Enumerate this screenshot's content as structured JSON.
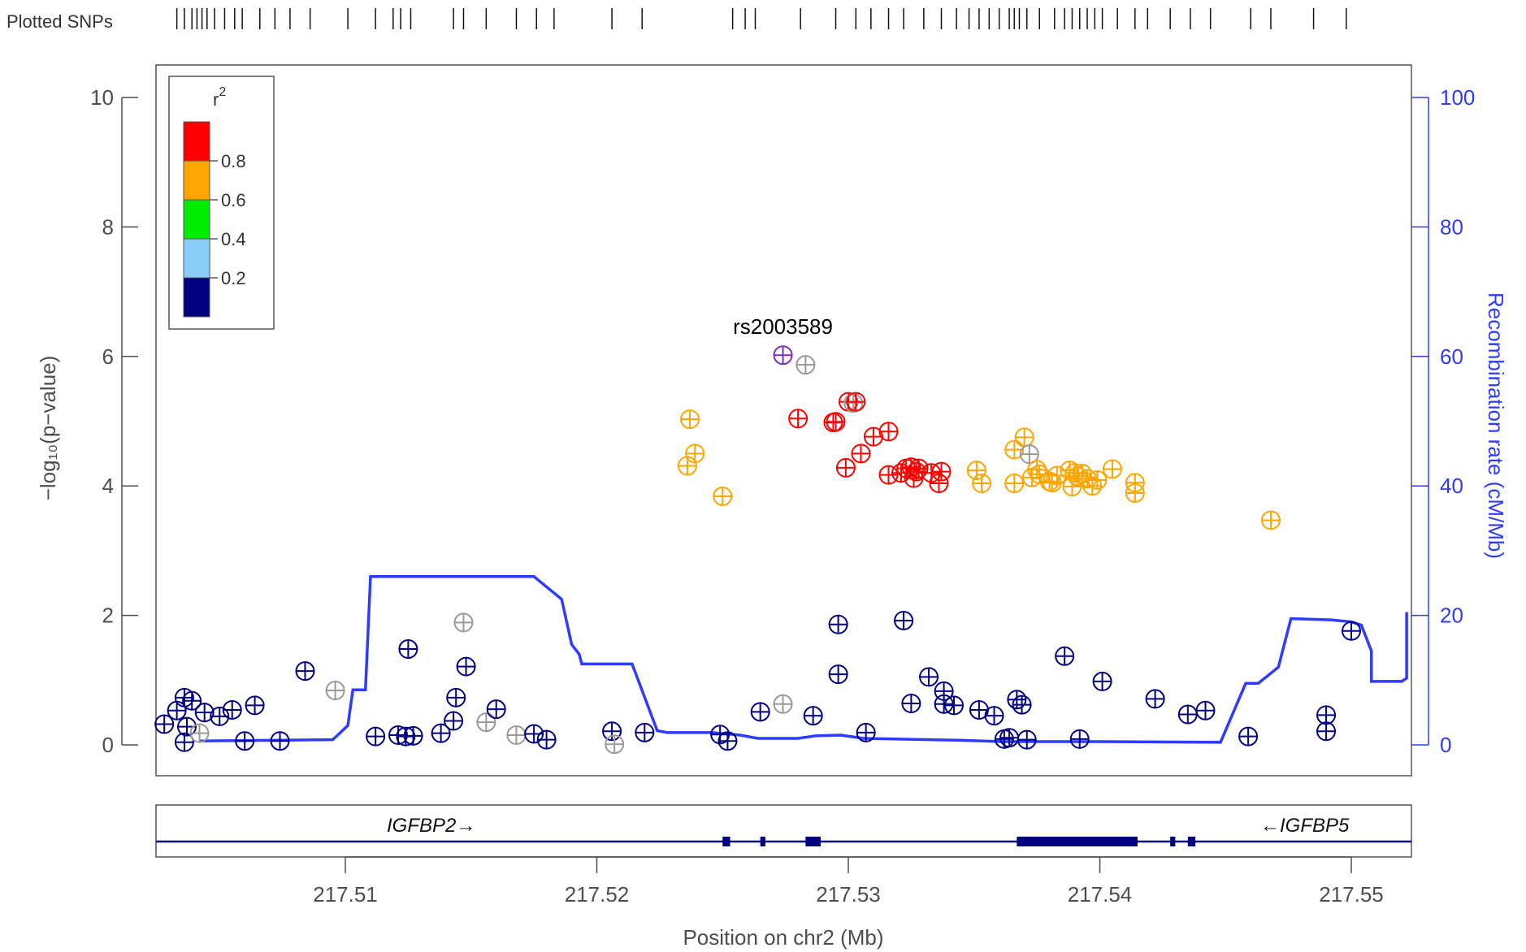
{
  "chart_data": {
    "type": "scatter",
    "ylabel_left": "−log₁₀(p−value)",
    "ylabel_right": "Recombination rate (cM/Mb)",
    "xlabel": "Position on chr2 (Mb)",
    "plotted_snps_label": "Plotted SNPs",
    "left_ylim": [
      0,
      10
    ],
    "left_yticks": [
      0,
      2,
      4,
      6,
      8,
      10
    ],
    "right_ylim": [
      0,
      100
    ],
    "right_yticks": [
      0,
      20,
      40,
      60,
      80,
      100
    ],
    "xlim": [
      217.5025,
      217.5525
    ],
    "xticks": [
      217.51,
      217.52,
      217.53,
      217.54,
      217.55
    ],
    "xtick_labels": [
      "217.51",
      "217.52",
      "217.53",
      "217.54",
      "217.55"
    ],
    "legend": {
      "title": "r²",
      "bins": [
        {
          "label": "0.8",
          "color": "#ff0000"
        },
        {
          "label": "0.6",
          "color": "#ffa500"
        },
        {
          "label": "0.4",
          "color": "#00ee00"
        },
        {
          "label": "0.2",
          "color": "#87cefa"
        },
        {
          "label": "",
          "color": "#000080"
        }
      ]
    },
    "top_snp": {
      "label": "rs2003589",
      "x": 217.5274,
      "y": 6.02,
      "color": "#7b2fbe"
    },
    "snp_ticks_mb": [
      217.5033,
      217.5036,
      217.5039,
      217.5041,
      217.5043,
      217.5045,
      217.5048,
      217.5052,
      217.5056,
      217.5059,
      217.5066,
      217.5072,
      217.5078,
      217.5086,
      217.5101,
      217.5112,
      217.5119,
      217.5122,
      217.5126,
      217.5143,
      217.5147,
      217.5156,
      217.5168,
      217.5176,
      217.5183,
      217.5206,
      217.5218,
      217.5254,
      217.5259,
      217.5263,
      217.5281,
      217.5295,
      217.5303,
      217.5309,
      217.5316,
      217.5322,
      217.533,
      217.5337,
      217.5343,
      217.5348,
      217.5352,
      217.5356,
      217.536,
      217.5364,
      217.5366,
      217.5368,
      217.5371,
      217.5376,
      217.5382,
      217.5386,
      217.5389,
      217.5392,
      217.5395,
      217.5398,
      217.5401,
      217.5407,
      217.5414,
      217.5419,
      217.5428,
      217.5436,
      217.5444,
      217.546,
      217.5468,
      217.5485,
      217.5498
    ],
    "recomb_line": [
      [
        217.5042,
        0.6
      ],
      [
        217.5095,
        0.8
      ],
      [
        217.5101,
        3.0
      ],
      [
        217.5103,
        8.5
      ],
      [
        217.5108,
        8.5
      ],
      [
        217.511,
        26.0
      ],
      [
        217.5175,
        26.0
      ],
      [
        217.5186,
        22.5
      ],
      [
        217.519,
        15.5
      ],
      [
        217.5191,
        15.0
      ],
      [
        217.5193,
        14.0
      ],
      [
        217.5194,
        12.5
      ],
      [
        217.5214,
        12.5
      ],
      [
        217.5215,
        11.5
      ],
      [
        217.5224,
        2.2
      ],
      [
        217.5228,
        1.9
      ],
      [
        217.5246,
        1.9
      ],
      [
        217.5257,
        1.5
      ],
      [
        217.5264,
        1.0
      ],
      [
        217.528,
        1.0
      ],
      [
        217.5287,
        1.4
      ],
      [
        217.5297,
        1.5
      ],
      [
        217.5306,
        1.0
      ],
      [
        217.5345,
        0.7
      ],
      [
        217.5361,
        0.5
      ],
      [
        217.5385,
        0.5
      ],
      [
        217.54,
        0.5
      ],
      [
        217.5448,
        0.4
      ],
      [
        217.5458,
        9.5
      ],
      [
        217.5463,
        9.5
      ],
      [
        217.5471,
        12.0
      ],
      [
        217.5476,
        19.5
      ],
      [
        217.5492,
        19.3
      ],
      [
        217.55,
        19.0
      ],
      [
        217.5504,
        18.5
      ],
      [
        217.5508,
        14.5
      ],
      [
        217.5508,
        9.8
      ],
      [
        217.552,
        9.8
      ],
      [
        217.5522,
        10.3
      ],
      [
        217.5522,
        20.5
      ]
    ],
    "points": [
      {
        "x": 217.5028,
        "y": 0.32,
        "color": "#000080"
      },
      {
        "x": 217.5033,
        "y": 0.53,
        "color": "#000080"
      },
      {
        "x": 217.5036,
        "y": 0.73,
        "color": "#000080"
      },
      {
        "x": 217.5037,
        "y": 0.28,
        "color": "#000080"
      },
      {
        "x": 217.5036,
        "y": 0.04,
        "color": "#000080"
      },
      {
        "x": 217.5039,
        "y": 0.68,
        "color": "#000080"
      },
      {
        "x": 217.5042,
        "y": 0.18,
        "color": "#999999"
      },
      {
        "x": 217.5044,
        "y": 0.5,
        "color": "#000080"
      },
      {
        "x": 217.505,
        "y": 0.44,
        "color": "#000080"
      },
      {
        "x": 217.5055,
        "y": 0.54,
        "color": "#000080"
      },
      {
        "x": 217.506,
        "y": 0.06,
        "color": "#000080"
      },
      {
        "x": 217.5064,
        "y": 0.61,
        "color": "#000080"
      },
      {
        "x": 217.5074,
        "y": 0.06,
        "color": "#000080"
      },
      {
        "x": 217.5084,
        "y": 1.14,
        "color": "#000080"
      },
      {
        "x": 217.5096,
        "y": 0.84,
        "color": "#999999"
      },
      {
        "x": 217.5112,
        "y": 0.13,
        "color": "#000080"
      },
      {
        "x": 217.5121,
        "y": 0.15,
        "color": "#000080"
      },
      {
        "x": 217.5124,
        "y": 0.13,
        "color": "#000080"
      },
      {
        "x": 217.5127,
        "y": 0.14,
        "color": "#000080"
      },
      {
        "x": 217.5125,
        "y": 1.48,
        "color": "#000080"
      },
      {
        "x": 217.5138,
        "y": 0.18,
        "color": "#000080"
      },
      {
        "x": 217.5143,
        "y": 0.37,
        "color": "#000080"
      },
      {
        "x": 217.5144,
        "y": 0.73,
        "color": "#000080"
      },
      {
        "x": 217.5147,
        "y": 1.89,
        "color": "#999999"
      },
      {
        "x": 217.5148,
        "y": 1.21,
        "color": "#000080"
      },
      {
        "x": 217.5156,
        "y": 0.35,
        "color": "#999999"
      },
      {
        "x": 217.516,
        "y": 0.55,
        "color": "#000080"
      },
      {
        "x": 217.5168,
        "y": 0.15,
        "color": "#999999"
      },
      {
        "x": 217.5175,
        "y": 0.17,
        "color": "#000080"
      },
      {
        "x": 217.518,
        "y": 0.08,
        "color": "#000080"
      },
      {
        "x": 217.5206,
        "y": 0.21,
        "color": "#000080"
      },
      {
        "x": 217.5207,
        "y": 0.01,
        "color": "#999999"
      },
      {
        "x": 217.5219,
        "y": 0.19,
        "color": "#000080"
      },
      {
        "x": 217.5236,
        "y": 4.31,
        "color": "#ffa500"
      },
      {
        "x": 217.5237,
        "y": 5.03,
        "color": "#ffa500"
      },
      {
        "x": 217.5239,
        "y": 4.5,
        "color": "#ffa500"
      },
      {
        "x": 217.525,
        "y": 3.84,
        "color": "#ffa500"
      },
      {
        "x": 217.5249,
        "y": 0.16,
        "color": "#000080"
      },
      {
        "x": 217.5252,
        "y": 0.06,
        "color": "#000080"
      },
      {
        "x": 217.5265,
        "y": 0.51,
        "color": "#000080"
      },
      {
        "x": 217.5274,
        "y": 0.63,
        "color": "#999999"
      },
      {
        "x": 217.528,
        "y": 5.04,
        "color": "#ff0000"
      },
      {
        "x": 217.5283,
        "y": 5.87,
        "color": "#999999"
      },
      {
        "x": 217.5286,
        "y": 0.45,
        "color": "#000080"
      },
      {
        "x": 217.5294,
        "y": 4.98,
        "color": "#ff0000"
      },
      {
        "x": 217.5295,
        "y": 4.99,
        "color": "#ff0000"
      },
      {
        "x": 217.5296,
        "y": 1.86,
        "color": "#000080"
      },
      {
        "x": 217.5296,
        "y": 1.09,
        "color": "#000080"
      },
      {
        "x": 217.5299,
        "y": 4.28,
        "color": "#ff0000"
      },
      {
        "x": 217.53,
        "y": 5.3,
        "color": "#ff0000"
      },
      {
        "x": 217.5302,
        "y": 5.28,
        "color": "#999999"
      },
      {
        "x": 217.5303,
        "y": 5.3,
        "color": "#ff0000"
      },
      {
        "x": 217.5305,
        "y": 4.5,
        "color": "#ff0000"
      },
      {
        "x": 217.5307,
        "y": 0.19,
        "color": "#000080"
      },
      {
        "x": 217.531,
        "y": 4.76,
        "color": "#ff0000"
      },
      {
        "x": 217.5316,
        "y": 4.84,
        "color": "#ff0000"
      },
      {
        "x": 217.5316,
        "y": 4.17,
        "color": "#ff0000"
      },
      {
        "x": 217.5322,
        "y": 1.92,
        "color": "#000080"
      },
      {
        "x": 217.5321,
        "y": 4.2,
        "color": "#ff0000"
      },
      {
        "x": 217.5323,
        "y": 4.27,
        "color": "#ff0000"
      },
      {
        "x": 217.5325,
        "y": 4.29,
        "color": "#ff0000"
      },
      {
        "x": 217.5325,
        "y": 0.64,
        "color": "#000080"
      },
      {
        "x": 217.5326,
        "y": 4.12,
        "color": "#ff0000"
      },
      {
        "x": 217.5327,
        "y": 4.22,
        "color": "#ff0000"
      },
      {
        "x": 217.5328,
        "y": 4.27,
        "color": "#ff0000"
      },
      {
        "x": 217.5332,
        "y": 1.05,
        "color": "#000080"
      },
      {
        "x": 217.5333,
        "y": 4.2,
        "color": "#ff0000"
      },
      {
        "x": 217.5336,
        "y": 4.04,
        "color": "#ff0000"
      },
      {
        "x": 217.5337,
        "y": 4.22,
        "color": "#ff0000"
      },
      {
        "x": 217.5338,
        "y": 0.83,
        "color": "#000080"
      },
      {
        "x": 217.5338,
        "y": 0.63,
        "color": "#000080"
      },
      {
        "x": 217.5342,
        "y": 0.61,
        "color": "#000080"
      },
      {
        "x": 217.5351,
        "y": 4.24,
        "color": "#ffa500"
      },
      {
        "x": 217.5353,
        "y": 4.04,
        "color": "#ffa500"
      },
      {
        "x": 217.5352,
        "y": 0.54,
        "color": "#000080"
      },
      {
        "x": 217.5358,
        "y": 0.45,
        "color": "#000080"
      },
      {
        "x": 217.5362,
        "y": 0.09,
        "color": "#000080"
      },
      {
        "x": 217.5364,
        "y": 0.11,
        "color": "#000080"
      },
      {
        "x": 217.5366,
        "y": 4.04,
        "color": "#ffa500"
      },
      {
        "x": 217.5366,
        "y": 4.56,
        "color": "#ffa500"
      },
      {
        "x": 217.5367,
        "y": 0.7,
        "color": "#000080"
      },
      {
        "x": 217.5369,
        "y": 0.62,
        "color": "#000080"
      },
      {
        "x": 217.537,
        "y": 4.75,
        "color": "#ffa500"
      },
      {
        "x": 217.5371,
        "y": 0.08,
        "color": "#000080"
      },
      {
        "x": 217.5372,
        "y": 4.49,
        "color": "#999999"
      },
      {
        "x": 217.5373,
        "y": 4.13,
        "color": "#ffa500"
      },
      {
        "x": 217.5375,
        "y": 4.25,
        "color": "#ffa500"
      },
      {
        "x": 217.5376,
        "y": 4.18,
        "color": "#ffa500"
      },
      {
        "x": 217.538,
        "y": 4.07,
        "color": "#ffa500"
      },
      {
        "x": 217.5381,
        "y": 4.05,
        "color": "#ffa500"
      },
      {
        "x": 217.5383,
        "y": 4.16,
        "color": "#ffa500"
      },
      {
        "x": 217.5386,
        "y": 1.37,
        "color": "#000080"
      },
      {
        "x": 217.5388,
        "y": 4.24,
        "color": "#ffa500"
      },
      {
        "x": 217.5389,
        "y": 3.99,
        "color": "#ffa500"
      },
      {
        "x": 217.539,
        "y": 4.2,
        "color": "#ffa500"
      },
      {
        "x": 217.5391,
        "y": 4.15,
        "color": "#ffa500"
      },
      {
        "x": 217.5392,
        "y": 0.09,
        "color": "#000080"
      },
      {
        "x": 217.5393,
        "y": 4.19,
        "color": "#ffa500"
      },
      {
        "x": 217.5395,
        "y": 4.11,
        "color": "#ffa500"
      },
      {
        "x": 217.5397,
        "y": 4.0,
        "color": "#ffa500"
      },
      {
        "x": 217.5399,
        "y": 4.09,
        "color": "#ffa500"
      },
      {
        "x": 217.5401,
        "y": 0.98,
        "color": "#000080"
      },
      {
        "x": 217.5405,
        "y": 4.26,
        "color": "#ffa500"
      },
      {
        "x": 217.5414,
        "y": 4.05,
        "color": "#ffa500"
      },
      {
        "x": 217.5414,
        "y": 3.89,
        "color": "#ffa500"
      },
      {
        "x": 217.5422,
        "y": 0.71,
        "color": "#000080"
      },
      {
        "x": 217.5435,
        "y": 0.47,
        "color": "#000080"
      },
      {
        "x": 217.5442,
        "y": 0.53,
        "color": "#000080"
      },
      {
        "x": 217.5459,
        "y": 0.13,
        "color": "#000080"
      },
      {
        "x": 217.5468,
        "y": 3.47,
        "color": "#ffa500"
      },
      {
        "x": 217.549,
        "y": 0.46,
        "color": "#000080"
      },
      {
        "x": 217.549,
        "y": 0.21,
        "color": "#000080"
      },
      {
        "x": 217.55,
        "y": 1.76,
        "color": "#000080"
      }
    ],
    "genes": [
      {
        "name": "IGFBP2",
        "strand": "→"
      },
      {
        "name": "IGFBP5",
        "strand": "←"
      }
    ],
    "exons": [
      [
        217.525,
        217.5253
      ],
      [
        217.5265,
        217.5267
      ],
      [
        217.5283,
        217.5289
      ],
      [
        217.5367,
        217.5415
      ],
      [
        217.5428,
        217.543
      ],
      [
        217.5435,
        217.5438
      ]
    ]
  }
}
